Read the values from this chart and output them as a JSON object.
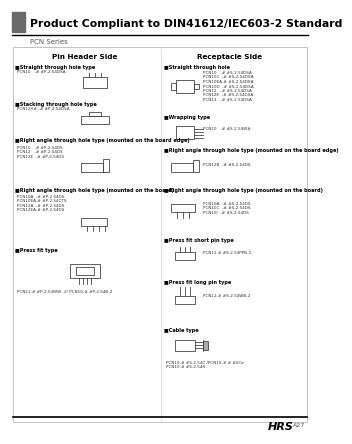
{
  "title": "Product Compliant to DIN41612/IEC603-2 Standard",
  "subtitle": "PCN Series",
  "bg_color": "#ffffff",
  "footer_brand": "HRS",
  "footer_page": "A27",
  "pin_header_title": "Pin Header Side",
  "receptacle_title": "Receptacle Side"
}
